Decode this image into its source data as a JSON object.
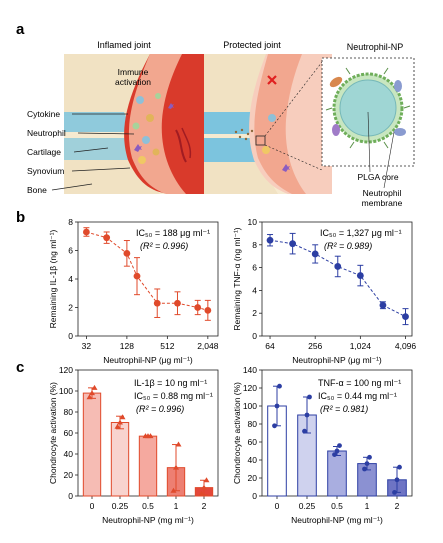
{
  "panel_a": {
    "label": "a",
    "inflamed_title": "Inflamed joint",
    "protected_title": "Protected joint",
    "immune_line1": "Immune",
    "immune_line2": "activation",
    "anatomy_labels": [
      "Cytokine",
      "Neutrophil",
      "Cartilage",
      "Synovium",
      "Bone"
    ],
    "np_title": "Neutrophil-NP",
    "plga_core": "PLGA core",
    "membrane_line1": "Neutrophil",
    "membrane_line2": "membrane",
    "colors": {
      "inflamed_red": "#d93a2b",
      "synovium_pink": "#f2a78f",
      "cartilage_blue": "#7cc4de",
      "bone_beige": "#f3e6c8",
      "core_teal": "#9fd6d4",
      "membrane_green": "#6fae5a"
    }
  },
  "panel_b": {
    "label": "b"
  },
  "panel_c": {
    "label": "c"
  },
  "chart_data": [
    {
      "id": "b-left",
      "type": "scatter",
      "panel": "b",
      "xlabel": "Neutrophil-NP (μg ml⁻¹)",
      "ylabel": "Remaining IL-1β (ng ml⁻¹)",
      "x_scale": "log2",
      "xlim": [
        24,
        2900
      ],
      "ylim": [
        0,
        8
      ],
      "xticks": [
        32,
        128,
        512,
        2048
      ],
      "xtick_labels": [
        "32",
        "128",
        "512",
        "2,048"
      ],
      "yticks": [
        0,
        2,
        4,
        6,
        8
      ],
      "annotation_ic50": "IC₅₀ = 188 μg ml⁻¹",
      "annotation_r2": "(R² = 0.996)",
      "color": "#e04a2b",
      "fit": "dashed sigmoid",
      "x": [
        32,
        64,
        128,
        181,
        362,
        724,
        1448,
        2048
      ],
      "y": [
        7.3,
        6.9,
        5.8,
        4.2,
        2.3,
        2.3,
        2.0,
        1.8
      ],
      "err": [
        0.3,
        0.4,
        0.9,
        1.3,
        1.0,
        0.8,
        0.5,
        0.7
      ]
    },
    {
      "id": "b-right",
      "type": "scatter",
      "panel": "b",
      "xlabel": "Neutrophil-NP (μg ml⁻¹)",
      "ylabel": "Remaining TNF-α (ng ml⁻¹)",
      "x_scale": "log2",
      "xlim": [
        50,
        5000
      ],
      "ylim": [
        0,
        10
      ],
      "xticks": [
        64,
        256,
        1024,
        4096
      ],
      "xtick_labels": [
        "64",
        "256",
        "1,024",
        "4,096"
      ],
      "yticks": [
        0,
        2,
        4,
        6,
        8,
        10
      ],
      "annotation_ic50": "IC₅₀ = 1,327 μg ml⁻¹",
      "annotation_r2": "(R² = 0.989)",
      "color": "#2c3ea3",
      "fit": "dashed sigmoid",
      "x": [
        64,
        128,
        256,
        512,
        1024,
        2048,
        4096
      ],
      "y": [
        8.4,
        8.1,
        7.2,
        6.1,
        5.3,
        2.7,
        1.7
      ],
      "err": [
        0.5,
        0.9,
        0.8,
        0.9,
        0.9,
        0.3,
        0.7
      ]
    },
    {
      "id": "c-left",
      "type": "bar",
      "panel": "c",
      "xlabel": "Neutrophil-NP (mg ml⁻¹)",
      "ylabel": "Chondrocyte activation (%)",
      "categories": [
        "0",
        "0.25",
        "0.5",
        "1",
        "2"
      ],
      "values": [
        98,
        70,
        57,
        27,
        8
      ],
      "err": [
        5,
        6,
        0.5,
        22,
        7
      ],
      "points": [
        [
          94,
          98,
          103
        ],
        [
          66,
          70,
          75
        ],
        [
          57,
          57,
          57
        ],
        [
          5,
          27,
          49
        ],
        [
          2,
          8,
          15
        ]
      ],
      "ylim": [
        0,
        120
      ],
      "yticks": [
        0,
        20,
        40,
        60,
        80,
        100,
        120
      ],
      "annotation_1": "IL-1β = 10 ng ml⁻¹",
      "annotation_2": "IC₅₀ = 0.88 mg ml⁻¹",
      "annotation_3": "(R² = 0.996)",
      "bar_colors": [
        "#f6bcb4",
        "#f8d3ce",
        "#f5a99f",
        "#ed7f72",
        "#e3473a"
      ],
      "edge_color": "#e04a2b"
    },
    {
      "id": "c-right",
      "type": "bar",
      "panel": "c",
      "xlabel": "Neutrophil-NP (mg ml⁻¹)",
      "ylabel": "Chondrocyte activation (%)",
      "categories": [
        "0",
        "0.25",
        "0.5",
        "1",
        "2"
      ],
      "values": [
        100,
        90,
        50,
        36,
        18
      ],
      "err": [
        22,
        20,
        5,
        7,
        14
      ],
      "points": [
        [
          78,
          100,
          122
        ],
        [
          72,
          90,
          110
        ],
        [
          46,
          50,
          56
        ],
        [
          30,
          36,
          43
        ],
        [
          4,
          18,
          32
        ]
      ],
      "ylim": [
        0,
        140
      ],
      "yticks": [
        0,
        20,
        40,
        60,
        80,
        100,
        120,
        140
      ],
      "annotation_1": "TNF-α = 100 ng ml⁻¹",
      "annotation_2": "IC₅₀ = 0.44 mg ml⁻¹",
      "annotation_3": "(R² = 0.981)",
      "bar_colors": [
        "#ffffff",
        "#cfd2ee",
        "#a9aee0",
        "#8b91d2",
        "#6e74c4"
      ],
      "edge_color": "#2c3ea3"
    }
  ]
}
